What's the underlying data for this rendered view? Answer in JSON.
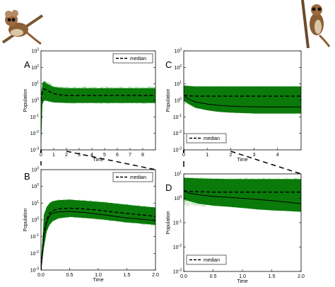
{
  "chart_data": [
    {
      "id": "A",
      "type": "area",
      "panel_label": "A",
      "xlabel": "Time",
      "ylabel": "Population",
      "xlim": [
        0,
        9
      ],
      "xticks": [
        0,
        1,
        2,
        3,
        4,
        5,
        6,
        7,
        8
      ],
      "ylim": [
        0.001,
        1000
      ],
      "yscale": "log",
      "ytick_labels": [
        "10^-3",
        "10^-2",
        "10^-1",
        "10^0",
        "10^1",
        "10^2",
        "10^3"
      ],
      "legend": {
        "entries": [
          "median"
        ],
        "placement": "top-right"
      },
      "x": [
        0,
        0.1,
        0.2,
        0.3,
        0.5,
        0.8,
        1,
        1.5,
        2,
        3,
        4,
        5,
        6,
        7,
        8,
        9
      ],
      "series": [
        {
          "name": "median",
          "style": "dashed",
          "values": [
            1,
            3.5,
            5,
            4.8,
            4,
            3,
            2.6,
            2.2,
            2,
            2,
            2,
            2,
            2,
            2,
            2,
            2
          ]
        },
        {
          "style": "band-upper",
          "values": [
            1,
            10,
            15,
            13,
            10,
            7.5,
            6.5,
            5.8,
            5.5,
            5.5,
            5.5,
            5.5,
            5.5,
            5.5,
            5.5,
            5.5
          ]
        },
        {
          "style": "band-lower",
          "values": [
            0.001,
            0.5,
            0.9,
            1,
            0.9,
            0.8,
            0.75,
            0.72,
            0.7,
            0.7,
            0.7,
            0.7,
            0.7,
            0.7,
            0.7,
            0.7
          ]
        }
      ]
    },
    {
      "id": "B",
      "type": "area",
      "panel_label": "B",
      "xlabel": "Time",
      "ylabel": "Population",
      "xlim": [
        0,
        2
      ],
      "xticks": [
        0,
        0.5,
        1.0,
        1.5,
        2.0
      ],
      "xtick_labels": [
        "0.0",
        "0.5",
        "1.0",
        "1.5",
        "2.0"
      ],
      "ylim": [
        0.001,
        1000
      ],
      "yscale": "log",
      "ytick_labels": [
        "10^-3",
        "10^-2",
        "10^-1",
        "10^0",
        "10^1",
        "10^2",
        "10^3"
      ],
      "legend": {
        "entries": [
          "median"
        ],
        "placement": "top-right"
      },
      "x": [
        0,
        0.05,
        0.1,
        0.15,
        0.2,
        0.3,
        0.5,
        0.75,
        1.0,
        1.25,
        1.5,
        1.75,
        2.0
      ],
      "series": [
        {
          "name": "median",
          "style": "dashed",
          "values": [
            0.001,
            0.15,
            1,
            2.5,
            3.5,
            4.5,
            5,
            4.5,
            3.8,
            3,
            2.4,
            2,
            1.6
          ]
        },
        {
          "style": "band-upper",
          "values": [
            0.001,
            2,
            6,
            10,
            13,
            15,
            16,
            14,
            12,
            10,
            8,
            6.5,
            5.5
          ]
        },
        {
          "style": "band-lower",
          "values": [
            0.001,
            0.02,
            0.2,
            0.5,
            0.8,
            1.2,
            1.5,
            1.3,
            1.1,
            0.9,
            0.7,
            0.6,
            0.5
          ]
        },
        {
          "style": "solid-low",
          "values": [
            0.001,
            0.1,
            0.7,
            1.8,
            2.5,
            3,
            3.2,
            2.8,
            2.2,
            1.7,
            1.3,
            1.1,
            0.9
          ]
        }
      ]
    },
    {
      "id": "C",
      "type": "area",
      "panel_label": "C",
      "xlabel": "Time",
      "ylabel": "Population",
      "xlim": [
        0,
        5
      ],
      "xticks": [
        0,
        1,
        2,
        3,
        4
      ],
      "ylim": [
        0.001,
        1000
      ],
      "yscale": "log",
      "ytick_labels": [
        "10^-3",
        "10^-2",
        "10^-1",
        "10^0",
        "10^1",
        "10^2",
        "10^3"
      ],
      "legend": {
        "entries": [
          "median"
        ],
        "placement": "bottom-left"
      },
      "x": [
        0,
        0.2,
        0.5,
        1,
        1.5,
        2,
        2.5,
        3,
        3.5,
        4,
        4.5,
        5
      ],
      "series": [
        {
          "name": "median",
          "style": "dashed",
          "values": [
            2,
            1.9,
            1.8,
            1.8,
            1.8,
            1.8,
            1.8,
            1.8,
            1.8,
            1.8,
            1.8,
            1.8
          ]
        },
        {
          "style": "band-upper",
          "values": [
            8,
            7.5,
            7,
            7,
            7,
            7,
            7,
            7,
            7,
            7,
            7,
            7
          ]
        },
        {
          "style": "band-lower",
          "values": [
            1,
            0.6,
            0.35,
            0.25,
            0.2,
            0.18,
            0.17,
            0.16,
            0.16,
            0.16,
            0.16,
            0.16
          ]
        },
        {
          "style": "solid-low",
          "values": [
            2,
            1.2,
            0.8,
            0.6,
            0.5,
            0.45,
            0.42,
            0.41,
            0.4,
            0.4,
            0.4,
            0.4
          ]
        }
      ]
    },
    {
      "id": "D",
      "type": "area",
      "panel_label": "D",
      "xlabel": "Time",
      "ylabel": "Population",
      "xlim": [
        0,
        2
      ],
      "xticks": [
        0,
        0.5,
        1.0,
        1.5,
        2.0
      ],
      "xtick_labels": [
        "0.0",
        "0.5",
        "1.0",
        "1.5",
        "2.0"
      ],
      "ylim": [
        0.001,
        10
      ],
      "yscale": "log",
      "ytick_labels": [
        "10^-3",
        "10^-2",
        "10^-1",
        "10^0",
        "10^1"
      ],
      "legend": {
        "entries": [
          "median"
        ],
        "placement": "bottom-left"
      },
      "x": [
        0,
        0.1,
        0.25,
        0.5,
        0.75,
        1.0,
        1.25,
        1.5,
        1.75,
        2.0
      ],
      "series": [
        {
          "name": "median",
          "style": "dashed",
          "values": [
            2,
            1.9,
            1.85,
            1.8,
            1.8,
            1.8,
            1.8,
            1.8,
            1.8,
            1.8
          ]
        },
        {
          "style": "band-upper",
          "values": [
            7,
            6.8,
            6.5,
            6.3,
            6.2,
            6.2,
            6.2,
            6.2,
            6.2,
            6.2
          ]
        },
        {
          "style": "band-lower",
          "values": [
            0.9,
            0.75,
            0.6,
            0.5,
            0.45,
            0.4,
            0.35,
            0.32,
            0.3,
            0.28
          ]
        },
        {
          "style": "solid-low",
          "values": [
            2,
            1.6,
            1.4,
            1.2,
            1.1,
            1.0,
            0.9,
            0.8,
            0.7,
            0.6
          ]
        }
      ]
    }
  ],
  "legend_label": "median",
  "colors": {
    "band": "#0a7a0a",
    "band_light": "#3fa83f",
    "spaghetti": "#3cb43c",
    "median": "#000000",
    "connector": "#000000"
  },
  "icons": {
    "left": "mouse-lemur-photo-icon",
    "right": "mouse-lemur-photo-icon"
  }
}
